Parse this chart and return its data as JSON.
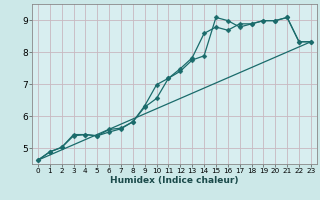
{
  "xlabel": "Humidex (Indice chaleur)",
  "bg_color": "#cce8e8",
  "plot_bg_color": "#d8eef0",
  "grid_color": "#c8b8c0",
  "line_color": "#1a6b6b",
  "xlim": [
    -0.5,
    23.5
  ],
  "ylim": [
    4.5,
    9.5
  ],
  "xticks": [
    0,
    1,
    2,
    3,
    4,
    5,
    6,
    7,
    8,
    9,
    10,
    11,
    12,
    13,
    14,
    15,
    16,
    17,
    18,
    19,
    20,
    21,
    22,
    23
  ],
  "yticks": [
    5,
    6,
    7,
    8,
    9
  ],
  "series1_x": [
    0,
    1,
    2,
    3,
    4,
    5,
    6,
    7,
    8,
    9,
    10,
    11,
    12,
    13,
    14,
    15,
    16,
    17,
    18,
    19,
    20,
    21,
    22,
    23
  ],
  "series1_y": [
    4.62,
    4.88,
    5.02,
    5.38,
    5.42,
    5.38,
    5.5,
    5.6,
    5.82,
    6.28,
    6.55,
    7.18,
    7.4,
    7.75,
    7.88,
    9.08,
    8.98,
    8.78,
    8.88,
    8.98,
    8.98,
    9.08,
    8.32,
    8.32
  ],
  "series2_x": [
    0,
    1,
    2,
    3,
    4,
    5,
    6,
    7,
    8,
    9,
    10,
    11,
    12,
    13,
    14,
    15,
    16,
    17,
    18,
    19,
    20,
    21,
    22,
    23
  ],
  "series2_y": [
    4.62,
    4.88,
    5.02,
    5.42,
    5.42,
    5.38,
    5.58,
    5.62,
    5.82,
    6.32,
    6.98,
    7.18,
    7.48,
    7.82,
    8.58,
    8.78,
    8.68,
    8.88,
    8.88,
    8.98,
    8.98,
    9.08,
    8.32,
    8.32
  ],
  "series3_x": [
    0,
    23
  ],
  "series3_y": [
    4.62,
    8.32
  ],
  "markersize": 2.5,
  "linewidth": 0.9
}
